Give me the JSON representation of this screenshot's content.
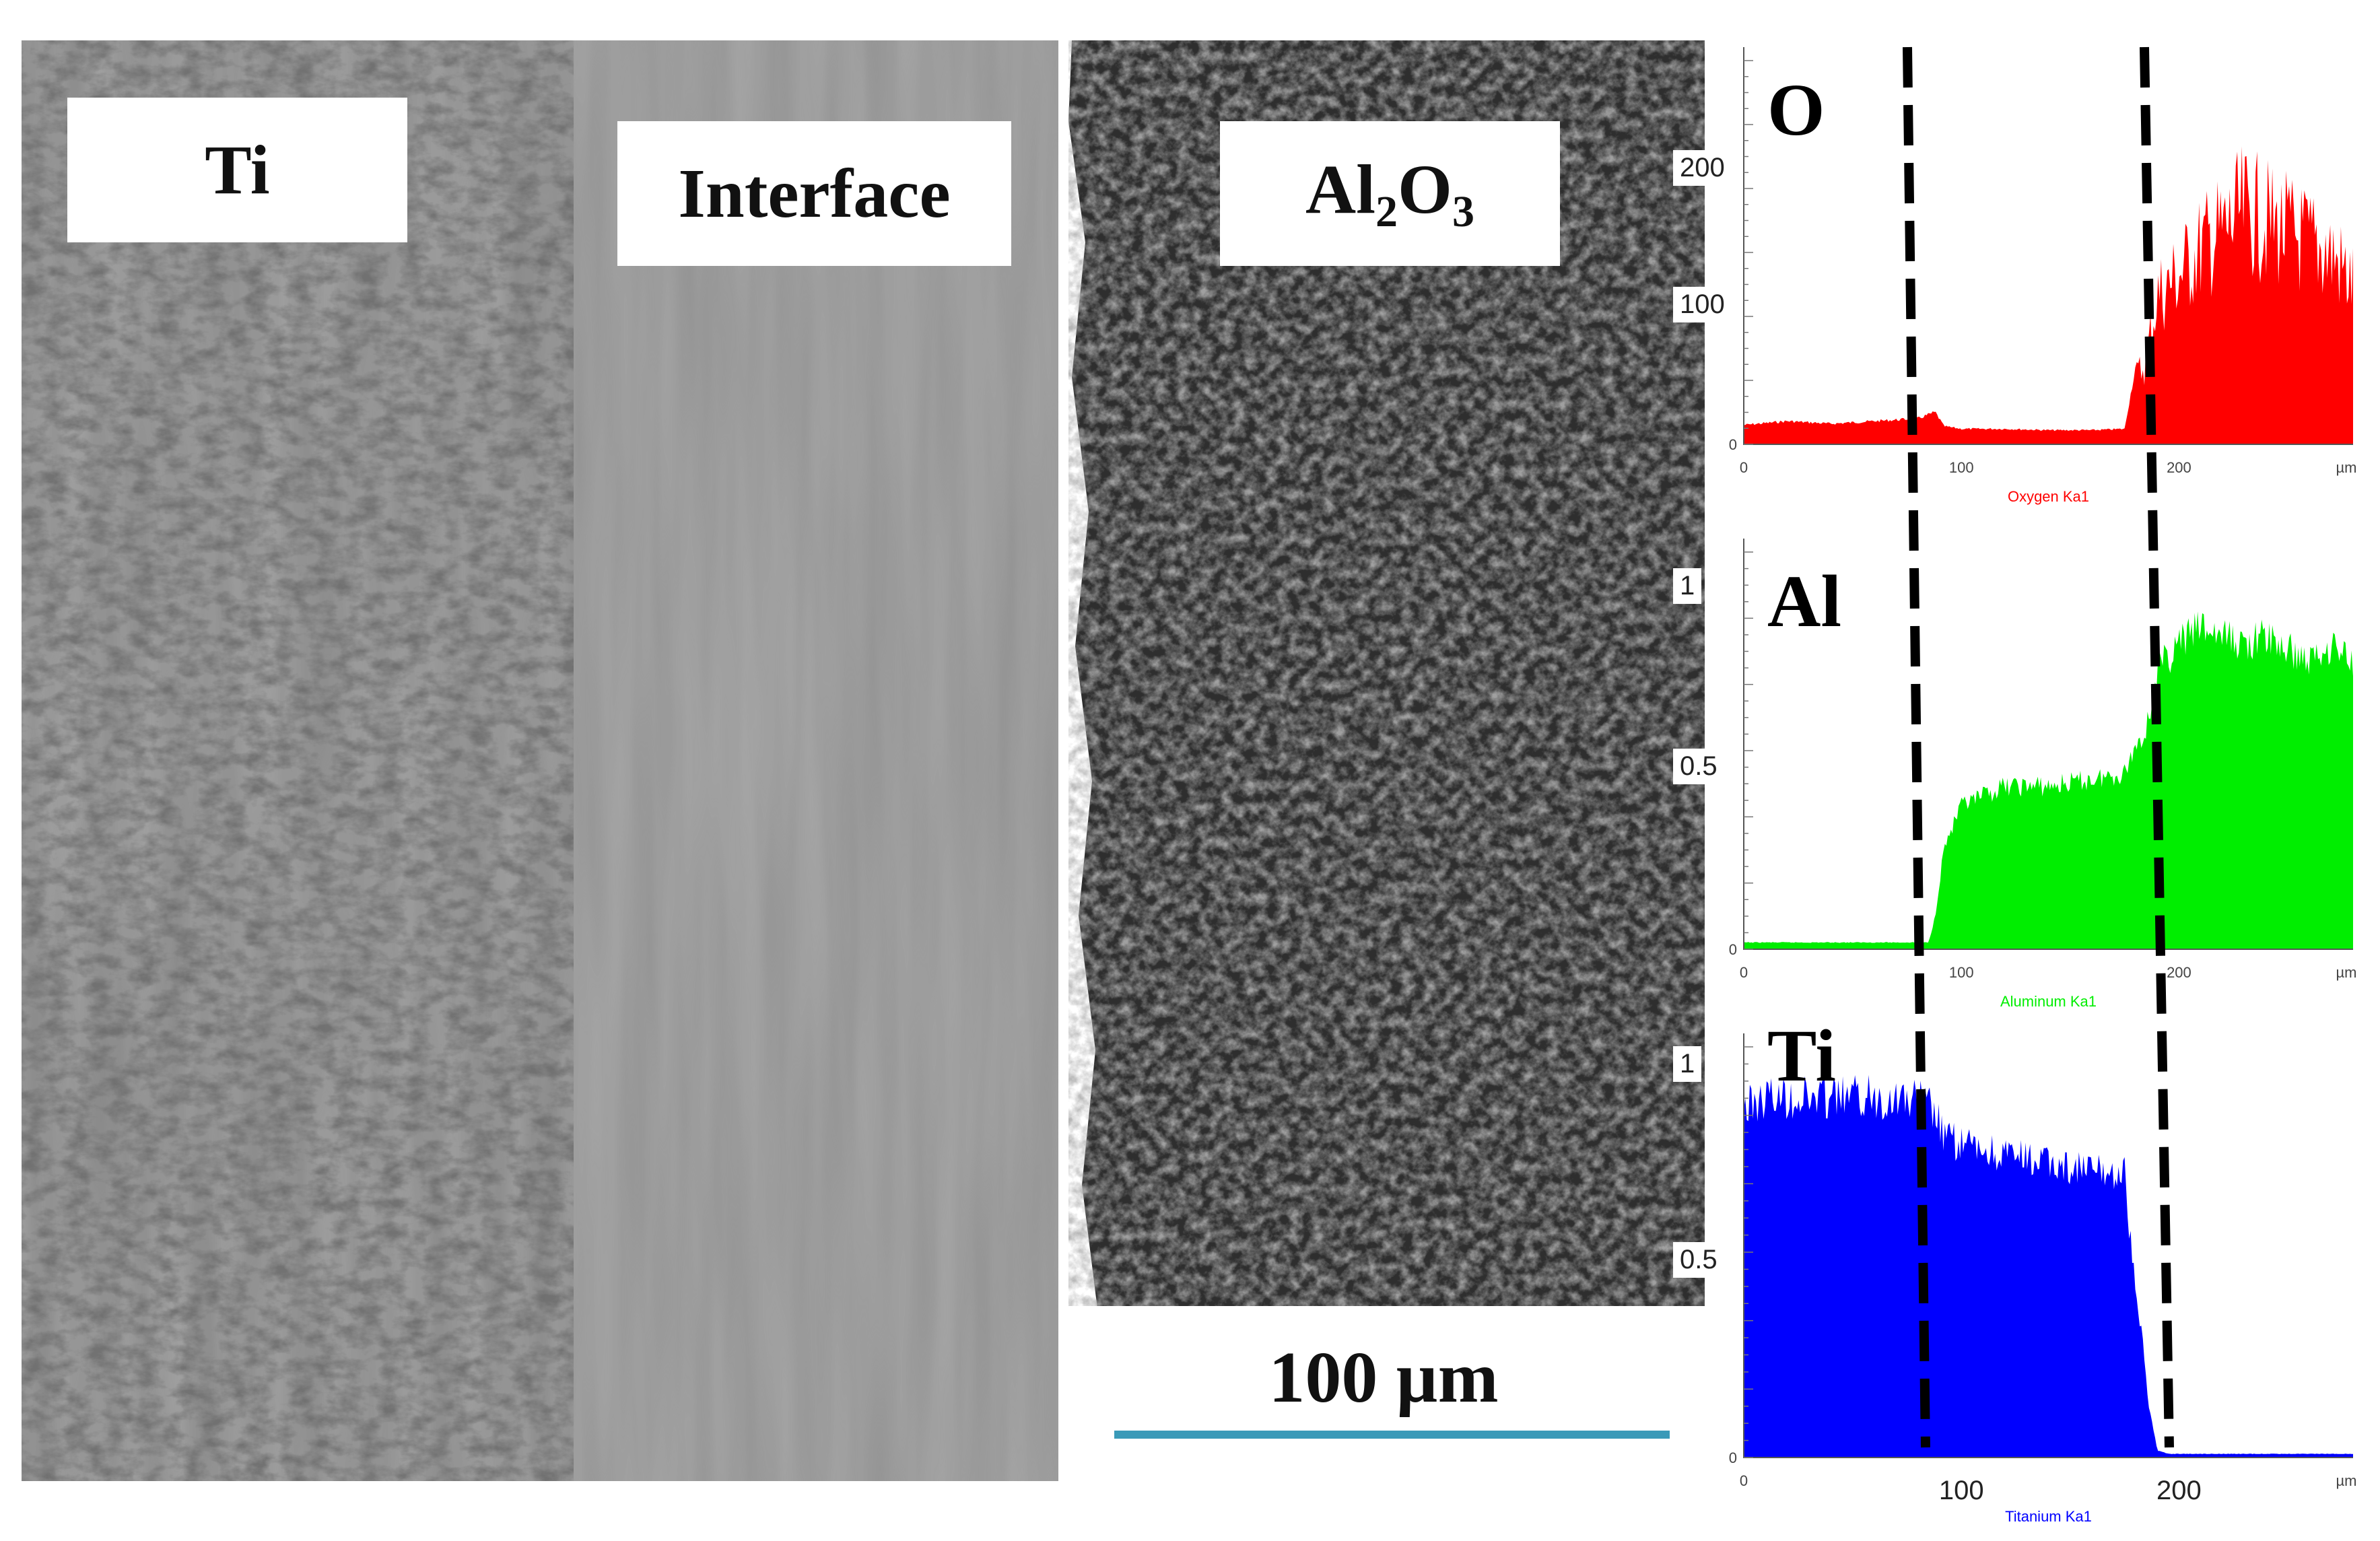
{
  "labels": {
    "ti_region": "Ti",
    "interface_region": "Interface",
    "al2o3_base": "Al",
    "al2o3_sub1": "2",
    "al2o3_mid": "O",
    "al2o3_sub2": "3",
    "scale_bar": "100 µm"
  },
  "colors": {
    "oxygen": "#ff0000",
    "aluminum": "#00ee00",
    "titanium": "#0000ff",
    "scale_bar": "#3a9ab8"
  },
  "chart_data": [
    {
      "type": "area",
      "element": "O",
      "legend": "Oxygen Ka1",
      "xunit": "µm",
      "xticks": [
        "0",
        "100",
        "200"
      ],
      "yticks": [
        "200",
        "100",
        "0"
      ],
      "xlim": [
        0,
        280
      ],
      "ylim": [
        0,
        280
      ],
      "color": "#ff0000",
      "x": [
        0,
        20,
        40,
        60,
        80,
        88,
        92,
        100,
        120,
        140,
        160,
        175,
        180,
        185,
        190,
        200,
        210,
        220,
        230,
        240,
        250,
        260,
        270,
        280
      ],
      "values": [
        15,
        18,
        16,
        18,
        20,
        25,
        14,
        12,
        12,
        11,
        11,
        12,
        60,
        80,
        140,
        160,
        185,
        200,
        220,
        210,
        200,
        190,
        180,
        150
      ]
    },
    {
      "type": "area",
      "element": "Al",
      "legend": "Aluminum Ka1",
      "xunit": "µm",
      "xticks": [
        "0",
        "100",
        "200"
      ],
      "yticks": [
        "1",
        "0.5",
        "0"
      ],
      "xlim": [
        0,
        280
      ],
      "ylim": [
        0,
        1.1
      ],
      "color": "#00ee00",
      "x": [
        0,
        20,
        40,
        60,
        80,
        85,
        88,
        92,
        100,
        120,
        140,
        160,
        175,
        180,
        185,
        190,
        200,
        210,
        220,
        230,
        240,
        250,
        260,
        270,
        280
      ],
      "values": [
        0.02,
        0.02,
        0.02,
        0.02,
        0.02,
        0.02,
        0.1,
        0.3,
        0.42,
        0.48,
        0.48,
        0.5,
        0.52,
        0.6,
        0.65,
        0.82,
        0.9,
        0.95,
        0.92,
        0.9,
        0.92,
        0.88,
        0.85,
        0.9,
        0.85
      ]
    },
    {
      "type": "area",
      "element": "Ti",
      "legend": "Titanium Ka1",
      "xunit": "µm",
      "xticks": [
        "100",
        "200"
      ],
      "yticks": [
        "1",
        "0.5",
        "0"
      ],
      "xlim": [
        0,
        280
      ],
      "ylim": [
        0,
        1.05
      ],
      "color": "#0000ff",
      "x": [
        0,
        10,
        30,
        50,
        70,
        80,
        85,
        88,
        92,
        100,
        120,
        140,
        160,
        175,
        180,
        183,
        186,
        190,
        195,
        200,
        240,
        280
      ],
      "values": [
        0.95,
        0.98,
        0.98,
        0.98,
        0.98,
        0.97,
        0.96,
        0.93,
        0.87,
        0.85,
        0.82,
        0.8,
        0.78,
        0.77,
        0.45,
        0.33,
        0.15,
        0.02,
        0.01,
        0.01,
        0.01,
        0.01
      ]
    }
  ]
}
